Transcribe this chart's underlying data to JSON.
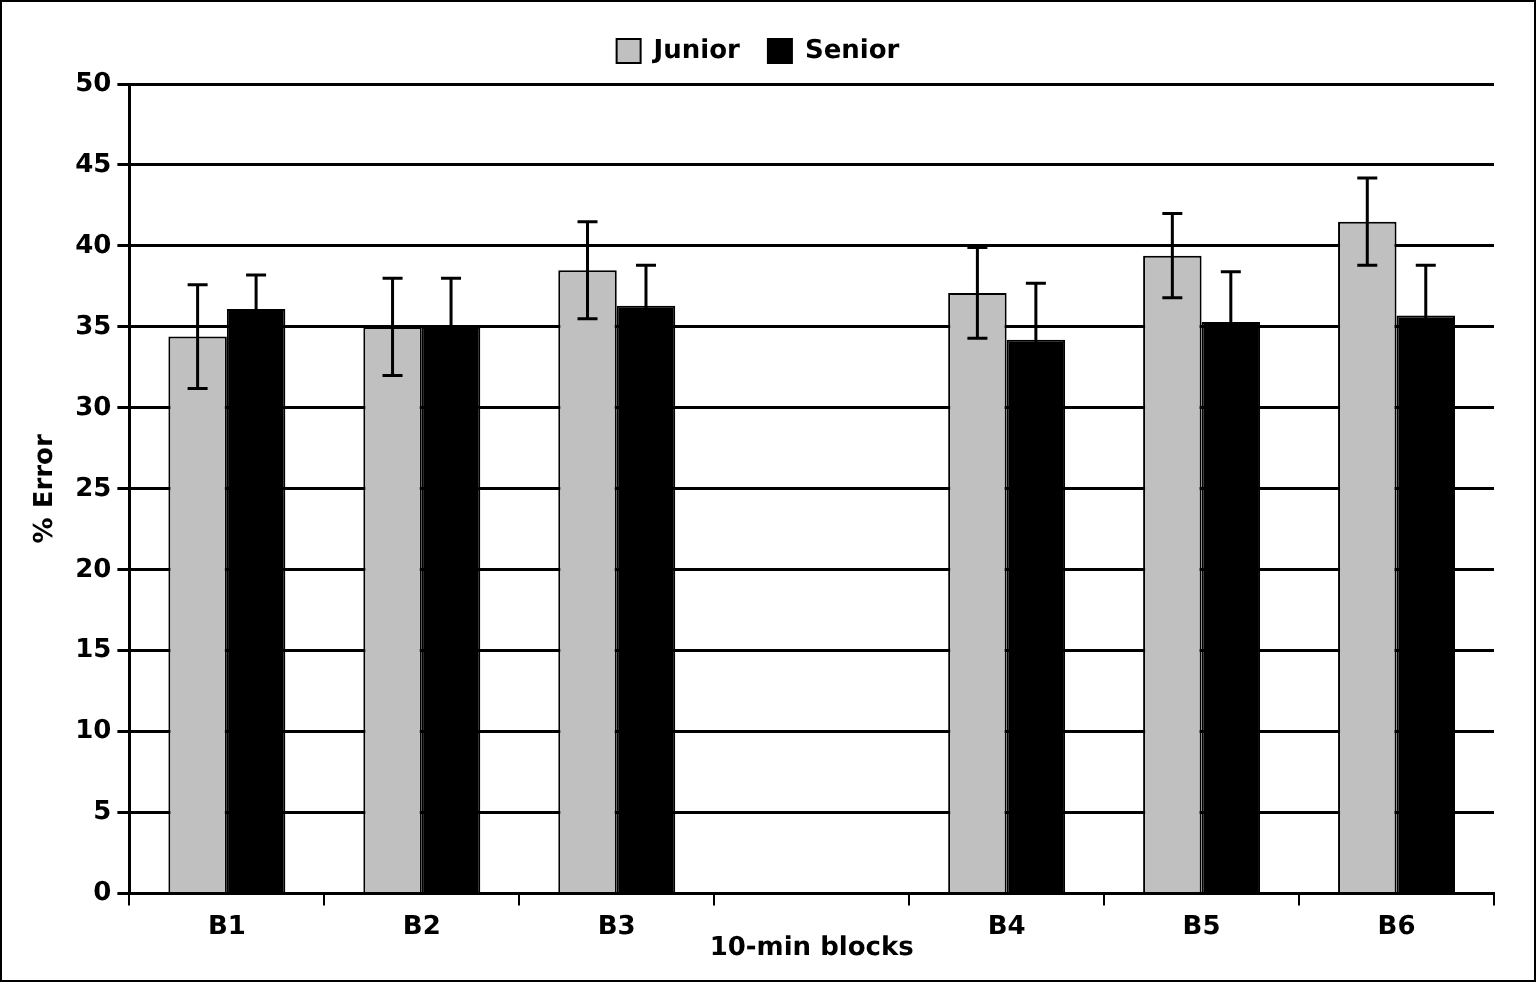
{
  "chart_data": {
    "type": "bar",
    "xlabel": "10-min blocks",
    "ylabel": "% Error",
    "categories": [
      "B1",
      "B2",
      "B3",
      null,
      "B4",
      "B5",
      "B6"
    ],
    "series": [
      {
        "name": "Junior",
        "color": "#c0c0c0",
        "values": [
          34.4,
          35.0,
          38.5,
          null,
          37.1,
          39.4,
          41.5
        ],
        "errors": [
          3.2,
          3.0,
          3.0,
          null,
          2.8,
          2.6,
          2.7
        ]
      },
      {
        "name": "Senior",
        "color": "#000000",
        "values": [
          36.1,
          35.0,
          36.3,
          null,
          34.2,
          35.3,
          35.7
        ],
        "errors": [
          2.1,
          3.0,
          2.5,
          null,
          3.5,
          3.1,
          3.1
        ]
      }
    ],
    "ylim": [
      0,
      50
    ],
    "yticks": [
      0,
      5,
      10,
      15,
      20,
      25,
      30,
      35,
      40,
      45,
      50
    ],
    "grid": "y",
    "legend": "top"
  }
}
